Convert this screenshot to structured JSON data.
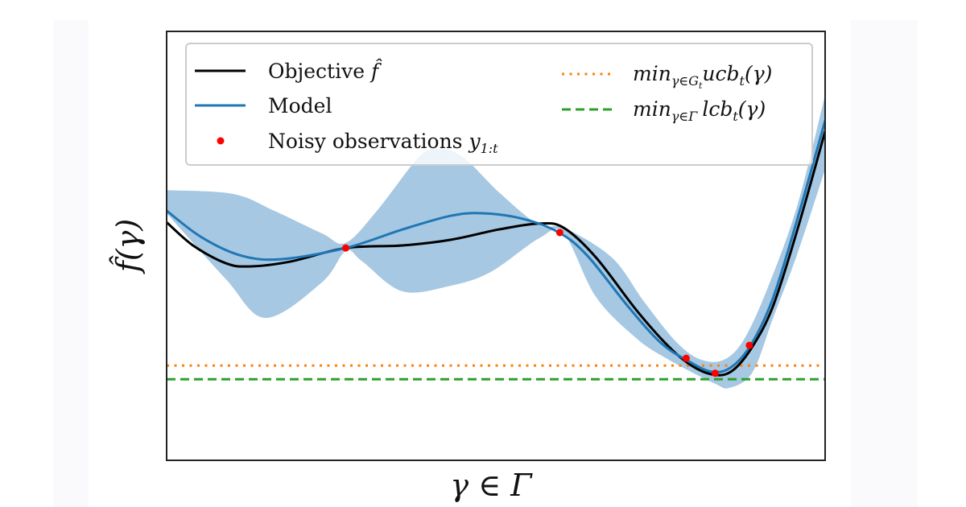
{
  "chart_data": {
    "type": "line",
    "title": "",
    "xlabel": "γ ∈ Γ",
    "ylabel": "f̂(γ)",
    "xlim": [
      0,
      1
    ],
    "ylim": [
      0,
      1
    ],
    "grid": false,
    "ticks": "none",
    "legend_placement": "top",
    "colors": {
      "objective": "#000000",
      "model": "#1f77b4",
      "band": "#a6c8e3",
      "observations": "#ff0000",
      "ucb": "#ff7f0e",
      "lcb": "#2ca02c",
      "frame": "#222222",
      "legend_border": "#cccccc"
    },
    "series": [
      {
        "name": "Objective",
        "legend_label": "Objective",
        "legend_symbol": "f̂",
        "style": "solid",
        "x": [
          0.0,
          0.04,
          0.089,
          0.125,
          0.187,
          0.272,
          0.358,
          0.431,
          0.504,
          0.566,
          0.603,
          0.652,
          0.713,
          0.762,
          0.798,
          0.833,
          0.86,
          0.89,
          0.921,
          0.958,
          1.0
        ],
        "y": [
          0.555,
          0.501,
          0.46,
          0.452,
          0.463,
          0.495,
          0.501,
          0.514,
          0.538,
          0.552,
          0.542,
          0.473,
          0.351,
          0.266,
          0.22,
          0.199,
          0.21,
          0.266,
          0.36,
          0.538,
          0.767
        ]
      },
      {
        "name": "Model",
        "legend_label": "Model",
        "style": "solid",
        "x": [
          0.0,
          0.053,
          0.114,
          0.175,
          0.272,
          0.358,
          0.431,
          0.48,
          0.541,
          0.596,
          0.639,
          0.7,
          0.749,
          0.788,
          0.829,
          0.86,
          0.89,
          0.921,
          0.958,
          1.0
        ],
        "y": [
          0.582,
          0.52,
          0.477,
          0.469,
          0.495,
          0.538,
          0.57,
          0.576,
          0.563,
          0.531,
          0.477,
          0.36,
          0.276,
          0.235,
          0.206,
          0.22,
          0.276,
          0.379,
          0.563,
          0.792
        ]
      },
      {
        "name": "Confidence band upper",
        "style": "fill",
        "x": [
          0.0,
          0.101,
          0.163,
          0.236,
          0.272,
          0.321,
          0.383,
          0.413,
          0.45,
          0.506,
          0.566,
          0.603,
          0.676,
          0.725,
          0.774,
          0.811,
          0.847,
          0.878,
          0.914,
          0.958,
          1.0
        ],
        "y": [
          0.63,
          0.621,
          0.582,
          0.529,
          0.507,
          0.585,
          0.707,
          0.726,
          0.707,
          0.623,
          0.548,
          0.542,
          0.473,
          0.37,
          0.276,
          0.235,
          0.235,
          0.285,
          0.407,
          0.595,
          0.852
        ]
      },
      {
        "name": "Confidence band lower",
        "style": "fill",
        "x": [
          0.0,
          0.089,
          0.15,
          0.236,
          0.272,
          0.297,
          0.358,
          0.431,
          0.492,
          0.566,
          0.603,
          0.652,
          0.713,
          0.762,
          0.831,
          0.855,
          0.89,
          0.921,
          0.958,
          1.0
        ],
        "y": [
          0.576,
          0.424,
          0.332,
          0.415,
          0.488,
          0.464,
          0.394,
          0.407,
          0.439,
          0.518,
          0.529,
          0.381,
          0.285,
          0.235,
          0.18,
          0.169,
          0.206,
          0.332,
          0.482,
          0.679
        ]
      },
      {
        "name": "Noisy observations",
        "legend_label": "Noisy observations",
        "legend_symbol": "y",
        "legend_subscript": "1:t",
        "style": "markers",
        "x": [
          0.272,
          0.597,
          0.789,
          0.833,
          0.885
        ],
        "y": [
          0.495,
          0.531,
          0.238,
          0.203,
          0.268
        ]
      },
      {
        "name": "min ucb",
        "legend_main": "min",
        "legend_sub": "γ∈G",
        "legend_subsub": "t",
        "legend_tail": "ucb",
        "legend_tail_sub": "t",
        "legend_arg": "(γ)",
        "style": "dotted",
        "y_const": 0.221
      },
      {
        "name": "min lcb",
        "legend_main": "min",
        "legend_sub": "γ∈Γ",
        "legend_tail": "lcb",
        "legend_tail_sub": "t",
        "legend_arg": "(γ)",
        "style": "dashed",
        "y_const": 0.189
      }
    ]
  }
}
